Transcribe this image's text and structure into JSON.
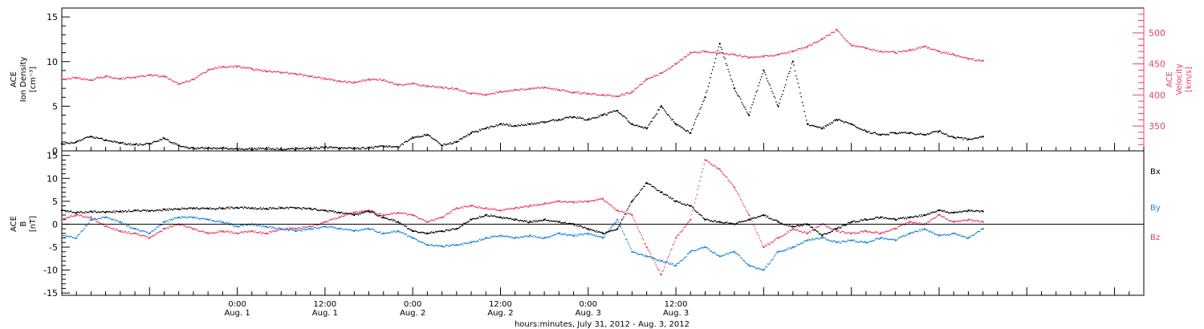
{
  "chart_data": [
    {
      "type": "scatter",
      "panel": "top",
      "ylabel_left": [
        "ACE",
        "Ion Density",
        "[cm⁻³]"
      ],
      "ylabel_right": [
        "ACE",
        "Velocity",
        "[km/s]"
      ],
      "ylim_left": [
        0,
        16
      ],
      "ylim_right": [
        310,
        540
      ],
      "yticks_left": [
        "0",
        "5",
        "10",
        "15"
      ],
      "yticks_right": [
        "350",
        "400",
        "450",
        "500"
      ],
      "colors": {
        "density": "#000000",
        "velocity": "#e8406a"
      },
      "series": [
        {
          "name": "",
          "axis": "left",
          "color": "#000000",
          "x_hours": [
            0,
            2,
            4,
            6,
            8,
            10,
            12,
            14,
            16,
            18,
            20,
            22,
            24,
            26,
            28,
            30,
            32,
            34,
            36,
            38,
            40,
            42,
            44,
            46,
            48,
            50,
            52,
            54,
            56,
            58,
            60,
            62,
            64,
            66,
            68,
            70,
            72,
            74,
            76,
            78,
            80,
            82,
            84,
            86,
            88,
            90,
            92,
            94,
            96,
            98,
            100,
            102,
            104,
            106,
            108,
            110,
            112,
            114,
            116,
            118,
            120,
            122,
            124,
            126
          ],
          "values": [
            0.8,
            1.0,
            1.6,
            1.2,
            0.9,
            0.7,
            0.8,
            1.4,
            0.6,
            0.3,
            0.3,
            0.3,
            0.2,
            0.2,
            0.3,
            0.2,
            0.2,
            0.3,
            0.4,
            0.3,
            0.3,
            0.3,
            0.5,
            0.4,
            1.5,
            1.8,
            0.6,
            1.0,
            2.0,
            2.5,
            3.0,
            2.8,
            3.0,
            3.2,
            3.5,
            3.8,
            3.5,
            4.0,
            4.5,
            3.0,
            2.5,
            5.0,
            3.0,
            2.0,
            6.0,
            12.0,
            7.0,
            4.0,
            9.0,
            5.0,
            10.0,
            3.0,
            2.5,
            3.5,
            3.0,
            2.2,
            1.8,
            2.0,
            2.0,
            1.8,
            2.2,
            1.5,
            1.3,
            1.6
          ]
        },
        {
          "name": "",
          "axis": "right",
          "color": "#e8406a",
          "x_hours": [
            0,
            2,
            4,
            6,
            8,
            10,
            12,
            14,
            16,
            18,
            20,
            22,
            24,
            26,
            28,
            30,
            32,
            34,
            36,
            38,
            40,
            42,
            44,
            46,
            48,
            50,
            52,
            54,
            56,
            58,
            60,
            62,
            64,
            66,
            68,
            70,
            72,
            74,
            76,
            78,
            80,
            82,
            84,
            86,
            88,
            90,
            92,
            94,
            96,
            98,
            100,
            102,
            104,
            106,
            108,
            110,
            112,
            114,
            116,
            118,
            120,
            122,
            124,
            126
          ],
          "values": [
            425,
            428,
            424,
            430,
            426,
            428,
            432,
            430,
            418,
            425,
            440,
            445,
            446,
            442,
            438,
            436,
            434,
            430,
            426,
            422,
            420,
            425,
            424,
            416,
            418,
            414,
            412,
            410,
            402,
            400,
            405,
            408,
            410,
            412,
            408,
            404,
            402,
            400,
            398,
            405,
            425,
            435,
            450,
            468,
            470,
            468,
            465,
            460,
            462,
            465,
            470,
            478,
            490,
            505,
            480,
            475,
            470,
            468,
            472,
            478,
            470,
            465,
            458,
            455
          ]
        }
      ]
    },
    {
      "type": "scatter",
      "panel": "bottom",
      "ylabel_left": [
        "ACE",
        "B",
        "[nT]"
      ],
      "ylim": [
        -15.5,
        16
      ],
      "yticks": [
        "-15",
        "-10",
        "-5",
        "0",
        "5",
        "10",
        "15"
      ],
      "colors": {
        "Bx": "#000000",
        "By": "#1c86d8",
        "Bz": "#e8406a"
      },
      "legend": [
        "Bx",
        "By",
        "Bz"
      ],
      "series": [
        {
          "name": "Bx",
          "color": "#000000",
          "x_hours": [
            0,
            2,
            4,
            6,
            8,
            10,
            12,
            14,
            16,
            18,
            20,
            22,
            24,
            26,
            28,
            30,
            32,
            34,
            36,
            38,
            40,
            42,
            44,
            46,
            48,
            50,
            52,
            54,
            56,
            58,
            60,
            62,
            64,
            66,
            68,
            70,
            72,
            74,
            76,
            78,
            80,
            82,
            84,
            86,
            88,
            90,
            92,
            94,
            96,
            98,
            100,
            102,
            104,
            106,
            108,
            110,
            112,
            114,
            116,
            118,
            120,
            122,
            124,
            126
          ],
          "values": [
            3.0,
            2.5,
            2.8,
            2.6,
            2.8,
            3.0,
            2.9,
            3.2,
            3.3,
            3.5,
            3.4,
            3.5,
            3.6,
            3.5,
            3.4,
            3.6,
            3.5,
            3.4,
            3.0,
            2.5,
            2.0,
            2.8,
            1.5,
            0.5,
            -1.5,
            -2.0,
            -1.5,
            -1.0,
            1.0,
            2.0,
            1.5,
            1.0,
            0.5,
            1.0,
            0.5,
            0.0,
            -1.0,
            -2.0,
            -1.0,
            5.0,
            9.0,
            7.0,
            5.0,
            4.0,
            1.0,
            0.5,
            0.0,
            1.0,
            2.0,
            0.5,
            -0.5,
            0.0,
            -2.5,
            -1.0,
            0.5,
            1.0,
            1.5,
            1.0,
            1.5,
            2.0,
            3.0,
            2.5,
            3.0,
            2.8
          ]
        },
        {
          "name": "By",
          "color": "#1c86d8",
          "x_hours": [
            0,
            2,
            4,
            6,
            8,
            10,
            12,
            14,
            16,
            18,
            20,
            22,
            24,
            26,
            28,
            30,
            32,
            34,
            36,
            38,
            40,
            42,
            44,
            46,
            48,
            50,
            52,
            54,
            56,
            58,
            60,
            62,
            64,
            66,
            68,
            70,
            72,
            74,
            76,
            78,
            80,
            82,
            84,
            86,
            88,
            90,
            92,
            94,
            96,
            98,
            100,
            102,
            104,
            106,
            108,
            110,
            112,
            114,
            116,
            118,
            120,
            122,
            124,
            126
          ],
          "values": [
            -2.5,
            -3.0,
            1.0,
            1.5,
            0.5,
            -1.0,
            -2.0,
            0.5,
            1.5,
            1.5,
            1.0,
            0.5,
            -0.5,
            0.0,
            -0.5,
            -1.0,
            -1.5,
            -1.0,
            -0.5,
            -1.0,
            -1.5,
            -1.0,
            -2.0,
            -1.5,
            -3.0,
            -4.5,
            -4.8,
            -4.5,
            -4.0,
            -3.0,
            -2.5,
            -3.0,
            -2.5,
            -3.0,
            -2.0,
            -2.5,
            -2.0,
            -3.0,
            1.0,
            -6.0,
            -7.0,
            -8.0,
            -9.0,
            -6.0,
            -5.0,
            -7.0,
            -6.0,
            -9.0,
            -10.0,
            -6.0,
            -5.0,
            -3.5,
            -3.0,
            -4.0,
            -3.5,
            -4.0,
            -3.0,
            -3.5,
            -2.0,
            -1.0,
            -2.5,
            -2.0,
            -3.0,
            -1.0
          ]
        },
        {
          "name": "Bz",
          "color": "#e8406a",
          "x_hours": [
            0,
            2,
            4,
            6,
            8,
            10,
            12,
            14,
            16,
            18,
            20,
            22,
            24,
            26,
            28,
            30,
            32,
            34,
            36,
            38,
            40,
            42,
            44,
            46,
            48,
            50,
            52,
            54,
            56,
            58,
            60,
            62,
            64,
            66,
            68,
            70,
            72,
            74,
            76,
            78,
            80,
            82,
            84,
            86,
            88,
            90,
            92,
            94,
            96,
            98,
            100,
            102,
            104,
            106,
            108,
            110,
            112,
            114,
            116,
            118,
            120,
            122,
            124,
            126
          ],
          "values": [
            1.0,
            2.0,
            1.5,
            -0.5,
            -1.5,
            -2.0,
            -3.0,
            -1.0,
            0.0,
            -1.0,
            -2.0,
            -1.5,
            -2.0,
            -1.5,
            -2.0,
            -1.0,
            -1.0,
            -0.5,
            0.5,
            1.5,
            2.5,
            3.0,
            2.0,
            2.5,
            2.0,
            0.5,
            1.5,
            3.5,
            4.0,
            3.5,
            3.0,
            3.5,
            4.0,
            4.5,
            5.0,
            4.8,
            5.0,
            5.5,
            3.0,
            2.0,
            -5.0,
            -11.0,
            -3.0,
            1.0,
            14.0,
            12.0,
            8.0,
            2.0,
            -5.0,
            -3.0,
            -1.0,
            -2.0,
            0.0,
            -1.5,
            -2.0,
            -1.5,
            -2.0,
            -1.0,
            0.5,
            0.0,
            2.0,
            0.5,
            1.0,
            0.5
          ]
        }
      ]
    }
  ],
  "x_axis": {
    "start": "2012-07-31 00:00",
    "xlim_hours": [
      0,
      148
    ],
    "ticks": [
      {
        "hour": 24,
        "time": "0:00",
        "date": "Aug. 1"
      },
      {
        "hour": 36,
        "time": "12:00",
        "date": "Aug. 1"
      },
      {
        "hour": 48,
        "time": "0:00",
        "date": "Aug. 2"
      },
      {
        "hour": 60,
        "time": "12:00",
        "date": "Aug. 2"
      },
      {
        "hour": 72,
        "time": "0:00",
        "date": "Aug. 3"
      },
      {
        "hour": 84,
        "time": "12:00",
        "date": "Aug. 3"
      }
    ],
    "label": "hours:minutes, July 31, 2012 - Aug.  3, 2012"
  }
}
